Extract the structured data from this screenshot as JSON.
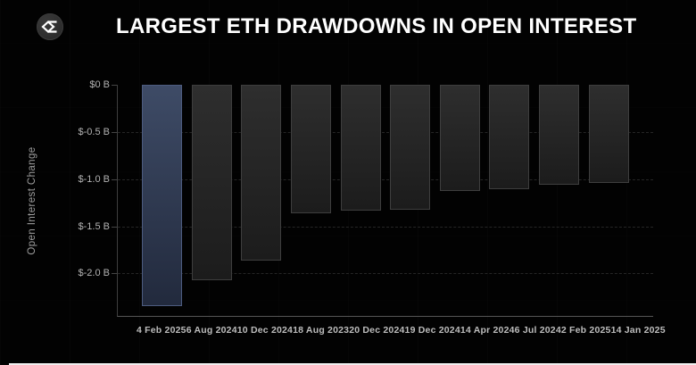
{
  "header": {
    "title": "LARGEST ETH DRAWDOWNS IN OPEN INTEREST",
    "logo_icon": "sigma-diamond-logo"
  },
  "chart_data": {
    "type": "bar",
    "title": "LARGEST ETH DRAWDOWNS IN OPEN INTEREST",
    "orientation": "vertical-negative",
    "categories": [
      "4 Feb 2025",
      "6 Aug 2024",
      "10 Dec 2024",
      "18 Aug 2023",
      "20 Dec 2024",
      "19 Dec 2024",
      "14 Apr 2024",
      "6 Jul 2024",
      "2 Feb 2025",
      "14 Jan 2025"
    ],
    "values": [
      -2.35,
      -2.07,
      -1.86,
      -1.36,
      -1.33,
      -1.32,
      -1.13,
      -1.11,
      -1.06,
      -1.04
    ],
    "value_unit": "billions USD",
    "xlabel": "",
    "ylabel": "Open Interest Change",
    "y_ticks": [
      {
        "label": "$0 B",
        "value": 0
      },
      {
        "label": "$-0.5 B",
        "value": -0.5
      },
      {
        "label": "$-1.0 B",
        "value": -1.0
      },
      {
        "label": "$-1.5 B",
        "value": -1.5
      },
      {
        "label": "$-2.0 B",
        "value": -2.0
      }
    ],
    "ylim": [
      -2.46,
      0
    ],
    "grid": {
      "horizontal": "dashed",
      "vertical": "none"
    },
    "legend_position": "none",
    "highlight_index": 0,
    "colors": {
      "background": "#020202",
      "title": "#ffffff",
      "highlight_bar_top": "#3e4b66",
      "highlight_bar_bottom": "#222a3d",
      "highlight_bar_border": "#4d5c80",
      "bar_top": "#2e2e2e",
      "bar_bottom": "#1c1c1c",
      "bar_border": "#3e3e3e",
      "axis_line": "#4a4a4a",
      "gridline": "#262626",
      "tick_label": "#b3b3b3",
      "axis_title": "#9e9e9e"
    }
  }
}
